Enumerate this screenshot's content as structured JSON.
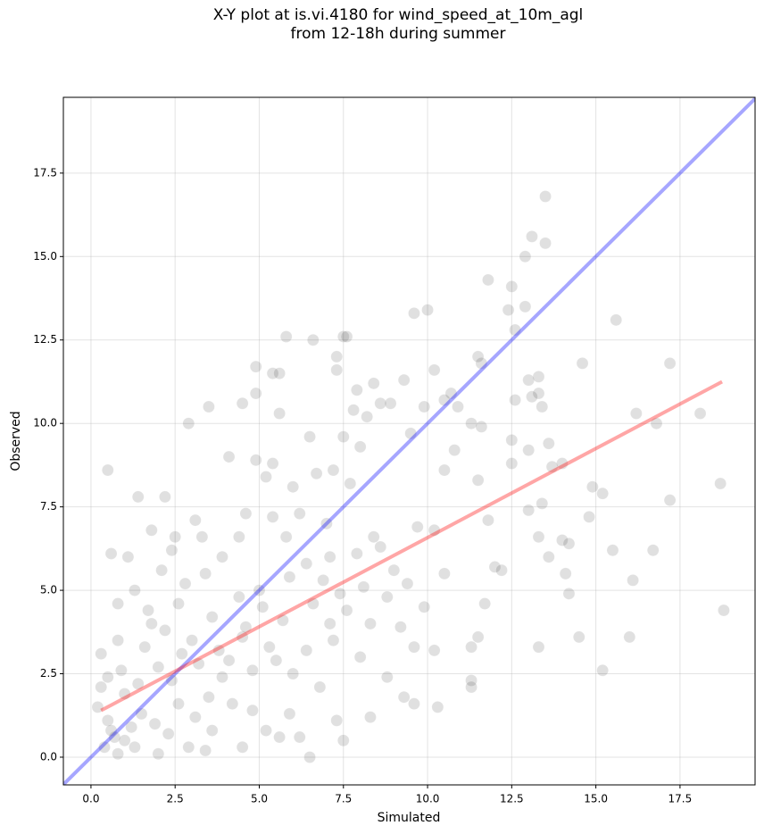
{
  "chart_data": {
    "type": "scatter",
    "title": [
      "X-Y plot at is.vi.4180 for wind_speed_at_10m_agl",
      "from 12-18h during summer"
    ],
    "xlabel": "Simulated",
    "ylabel": "Observed",
    "xlim": [
      -0.82,
      19.73
    ],
    "ylim": [
      -0.83,
      19.77
    ],
    "xticks": [
      {
        "value": 0,
        "label": "0.0"
      },
      2.5,
      {
        "value": 5,
        "label": "5.0"
      },
      7.5,
      {
        "value": 10,
        "label": "10.0"
      },
      12.5,
      {
        "value": 15,
        "label": "15.0"
      },
      17.5
    ],
    "yticks": [
      {
        "value": 0,
        "label": "0.0"
      },
      2.5,
      {
        "value": 5,
        "label": "5.0"
      },
      7.5,
      {
        "value": 10,
        "label": "10.0"
      },
      12.5,
      {
        "value": 15,
        "label": "15.0"
      },
      17.5
    ],
    "grid": true,
    "color": "#000000",
    "x": [
      13.5,
      13.1,
      12.9,
      13.5,
      11.8,
      12.5,
      9.6,
      10.0,
      12.4,
      12.9,
      15.6,
      5.8,
      6.6,
      7.5,
      7.6,
      12.6,
      11.6,
      11.5,
      10.2,
      7.3,
      7.3,
      4.9,
      5.4,
      5.6,
      9.3,
      13.3,
      13.0,
      14.6,
      17.2,
      8.4,
      7.9,
      4.9,
      10.7,
      10.5,
      13.3,
      13.1,
      4.5,
      3.5,
      8.6,
      8.9,
      9.9,
      10.9,
      12.6,
      13.4,
      7.8,
      5.6,
      8.2,
      16.2,
      18.1,
      2.9,
      11.3,
      11.6,
      16.8,
      6.5,
      7.5,
      9.5,
      10.8,
      12.5,
      13.0,
      13.6,
      8.0,
      4.1,
      4.9,
      5.4,
      7.2,
      10.5,
      11.5,
      12.5,
      14.9,
      15.2,
      18.7,
      13.7,
      14.0,
      17.2,
      11.8,
      13.0,
      13.4,
      14.8,
      15.5,
      16.7,
      13.6,
      14.0,
      14.2,
      13.3,
      12.0,
      12.2,
      14.1,
      14.2,
      16.1,
      11.7,
      18.8,
      14.5,
      16.0,
      11.5,
      13.3,
      11.3,
      15.2,
      11.3,
      11.3,
      10.3,
      9.6,
      9.3,
      8.3,
      7.5,
      6.5,
      0.5,
      1.4,
      2.2,
      0.6,
      1.8,
      2.5,
      3.3,
      4.4,
      5.8,
      7.1,
      8.4,
      9.7,
      10.2,
      9.0,
      10.5,
      9.9,
      9.6,
      10.2,
      8.3,
      7.2,
      6.4,
      5.3,
      4.5,
      3.6,
      2.6,
      1.7,
      0.8,
      0.3,
      0.3,
      0.5,
      0.6,
      0.7,
      0.4,
      0.8,
      1.0,
      1.2,
      1.5,
      1.9,
      2.3,
      2.6,
      3.1,
      3.6,
      4.2,
      4.8,
      5.2,
      5.9,
      6.2,
      7.3,
      6.8,
      6.0,
      5.5,
      4.8,
      3.9,
      3.2,
      2.7,
      2.0,
      1.4,
      1.0,
      0.9,
      1.6,
      2.2,
      3.0,
      3.8,
      4.4,
      5.0,
      5.7,
      6.6,
      7.1,
      7.6,
      8.1,
      8.8,
      9.4,
      8.6,
      7.9,
      7.0,
      6.2,
      5.4,
      4.6,
      3.9,
      3.4,
      2.8,
      2.1,
      1.3,
      0.8,
      1.8,
      2.4,
      3.5,
      4.1,
      4.6,
      5.1,
      5.9,
      6.4,
      6.9,
      7.4,
      8.0,
      8.8,
      9.2,
      7.7,
      6.7,
      6.0,
      5.2,
      3.1,
      2.4,
      1.1,
      0.2,
      0.5,
      1.3,
      2.0,
      2.9,
      3.4,
      4.5,
      5.6
    ],
    "values": [
      16.8,
      15.6,
      15.0,
      15.4,
      14.3,
      14.1,
      13.3,
      13.4,
      13.4,
      13.5,
      13.1,
      12.6,
      12.5,
      12.6,
      12.6,
      12.8,
      11.8,
      12.0,
      11.6,
      12.0,
      11.6,
      11.7,
      11.5,
      11.5,
      11.3,
      11.4,
      11.3,
      11.8,
      11.8,
      11.2,
      11.0,
      10.9,
      10.9,
      10.7,
      10.9,
      10.8,
      10.6,
      10.5,
      10.6,
      10.6,
      10.5,
      10.5,
      10.7,
      10.5,
      10.4,
      10.3,
      10.2,
      10.3,
      10.3,
      10.0,
      10.0,
      9.9,
      10.0,
      9.6,
      9.6,
      9.7,
      9.2,
      9.5,
      9.2,
      9.4,
      9.3,
      9.0,
      8.9,
      8.8,
      8.6,
      8.6,
      8.3,
      8.8,
      8.1,
      7.9,
      8.2,
      8.7,
      8.8,
      7.7,
      7.1,
      7.4,
      7.6,
      7.2,
      6.2,
      6.2,
      6.0,
      6.5,
      6.4,
      6.6,
      5.7,
      5.6,
      5.5,
      4.9,
      5.3,
      4.6,
      4.4,
      3.6,
      3.6,
      3.6,
      3.3,
      3.3,
      2.6,
      2.3,
      2.1,
      1.5,
      1.6,
      1.8,
      1.2,
      0.5,
      0.0,
      8.6,
      7.8,
      7.8,
      6.1,
      6.8,
      6.6,
      6.6,
      6.6,
      6.6,
      6.0,
      6.6,
      6.9,
      6.8,
      5.6,
      5.5,
      4.5,
      3.3,
      3.2,
      4.0,
      3.5,
      3.2,
      3.3,
      3.6,
      4.2,
      4.6,
      4.4,
      4.6,
      3.1,
      2.1,
      1.1,
      0.8,
      0.6,
      0.3,
      0.1,
      0.5,
      0.9,
      1.3,
      1.0,
      0.7,
      1.6,
      1.2,
      0.8,
      1.6,
      1.4,
      0.8,
      1.3,
      0.6,
      1.1,
      2.1,
      2.5,
      2.9,
      2.6,
      2.4,
      2.8,
      3.1,
      2.7,
      2.2,
      1.9,
      2.6,
      3.3,
      3.8,
      3.5,
      3.2,
      4.8,
      5.0,
      4.1,
      4.6,
      4.0,
      4.4,
      5.1,
      4.8,
      5.2,
      6.3,
      6.1,
      7.0,
      7.3,
      7.2,
      7.3,
      6.0,
      5.5,
      5.2,
      5.6,
      5.0,
      3.5,
      4.0,
      2.3,
      1.8,
      2.9,
      3.9,
      4.5,
      5.4,
      5.8,
      5.3,
      4.9,
      3.0,
      2.4,
      3.9,
      8.2,
      8.5,
      8.1,
      8.4,
      7.1,
      6.2,
      6.0,
      1.5,
      2.4,
      0.3,
      0.1,
      0.3,
      0.2,
      0.3,
      0.6
    ],
    "lines": [
      {
        "color": "#0000ff",
        "x": [
          -0.82,
          19.73
        ],
        "values": [
          -0.82,
          19.73
        ]
      },
      {
        "color": "#ff0000",
        "x": [
          0.3,
          18.75
        ],
        "values": [
          1.4,
          11.25
        ]
      }
    ]
  }
}
